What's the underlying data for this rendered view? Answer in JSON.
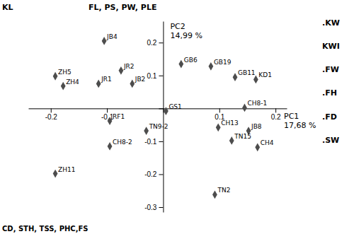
{
  "chart_data": {
    "type": "scatter",
    "x": [
      -0.105,
      -0.075,
      -0.115,
      -0.055,
      0.005,
      -0.095,
      -0.03,
      -0.095,
      0.032,
      0.085,
      0.128,
      0.165,
      0.145,
      0.098,
      0.152,
      0.122,
      0.168,
      -0.192,
      -0.178,
      -0.192,
      0.092
    ],
    "values": [
      0.205,
      0.115,
      0.075,
      0.075,
      -0.008,
      -0.038,
      -0.068,
      -0.115,
      0.135,
      0.128,
      0.095,
      0.088,
      0.002,
      -0.058,
      -0.068,
      -0.098,
      -0.118,
      0.098,
      0.068,
      -0.198,
      -0.262
    ],
    "point_labels": [
      "JB4",
      "JR2",
      "JR1",
      "JB2",
      "GS1",
      "RF1",
      "TN9-2",
      "CH8-2",
      "GB6",
      "GB19",
      "GB11",
      "KD1",
      "CH8-1",
      "CH13",
      "JB8",
      "TN15",
      "CH4",
      "ZH5",
      "ZH4",
      "ZH11",
      "TN2"
    ],
    "color": "#4d4d4d",
    "marker": "diamond",
    "xlabel": "PC1",
    "ylabel": "PC2",
    "annotations": [
      "14,99 %",
      "17,68 %",
      "KL",
      "FL, PS, PW, PLE",
      "CD, STH, TSS, PHC,FS",
      ".KW",
      "KWI",
      ".FW",
      ".FH",
      ".FD",
      ".SW"
    ],
    "xlim": [
      -0.24,
      0.22
    ],
    "ylim": [
      -0.315,
      0.265
    ],
    "xticks": [
      -0.2,
      -0.1,
      {
        "value": 0,
        "label": null
      },
      0.1,
      0.2
    ],
    "yticks": [
      -0.3,
      -0.2,
      -0.1,
      {
        "value": 0,
        "label": null
      },
      0.1,
      0.2
    ],
    "grid": false
  }
}
